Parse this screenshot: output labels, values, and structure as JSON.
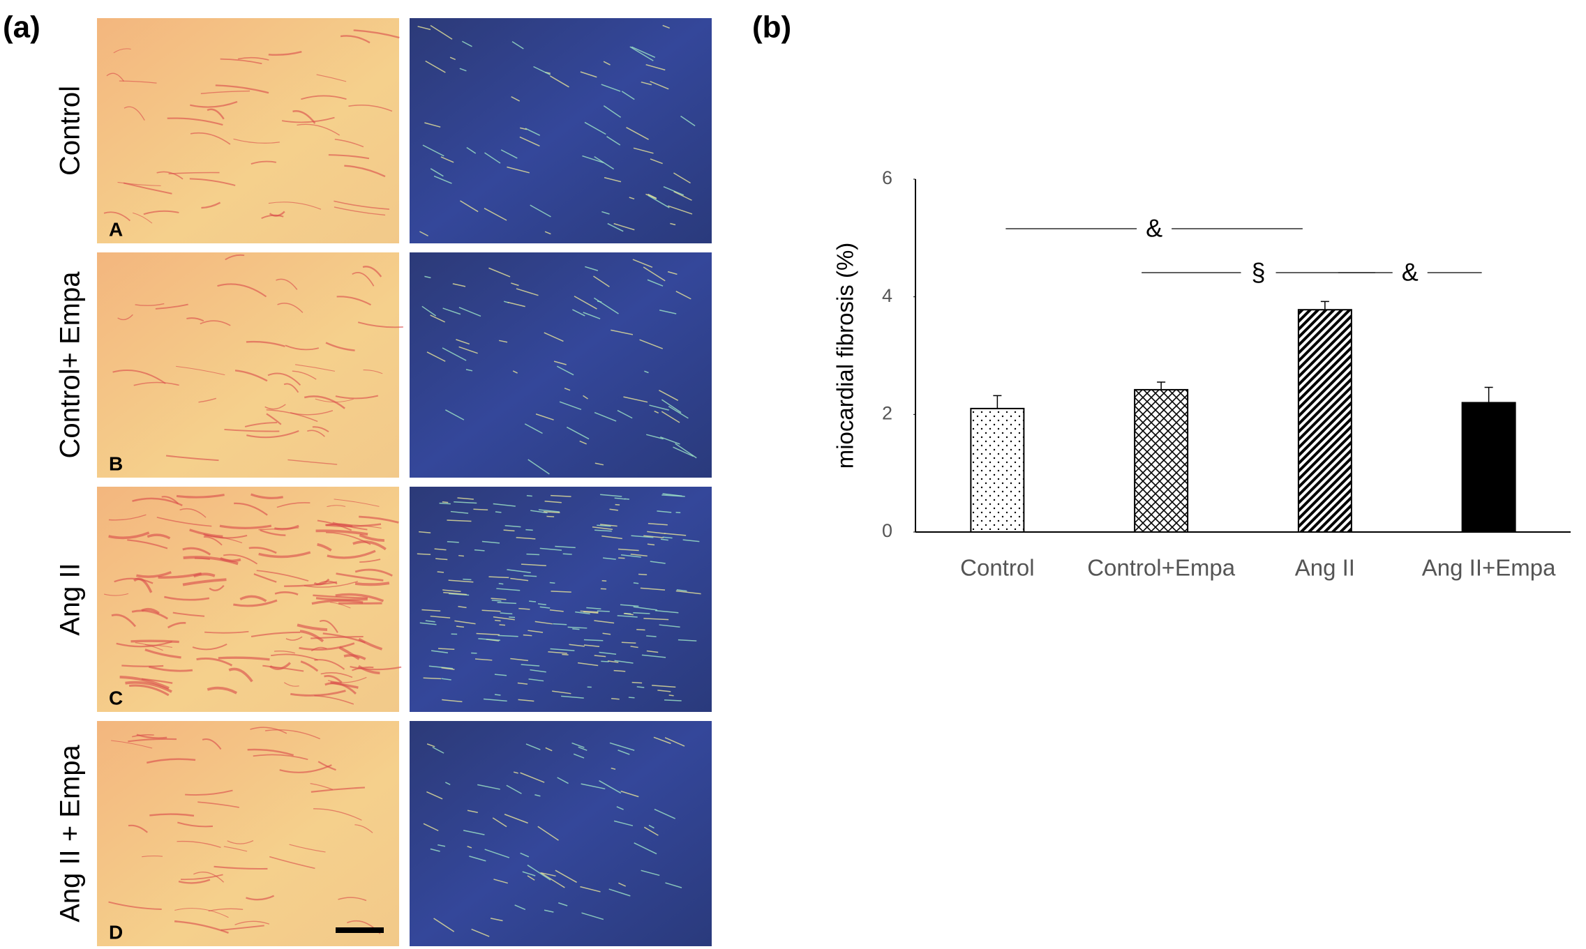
{
  "panel_a": {
    "label": "(a)",
    "rows": [
      {
        "label": "Control",
        "letter": "A"
      },
      {
        "label": "Control+ Empa",
        "letter": "B"
      },
      {
        "label": "Ang II",
        "letter": "C"
      },
      {
        "label": "Ang II + Empa",
        "letter": "D"
      }
    ]
  },
  "chart_data": {
    "type": "bar",
    "panel_label": "(b)",
    "y_label": "miocardial fibrosis (%)",
    "categories": [
      "Control",
      "Control+Empa",
      "Ang II",
      "Ang II+Empa"
    ],
    "values": [
      2.1,
      2.42,
      3.78,
      2.2
    ],
    "errors": [
      0.22,
      0.13,
      0.14,
      0.26
    ],
    "patterns": [
      "dots",
      "crosshatch",
      "diagonal",
      "solid"
    ],
    "color": "#000000",
    "ylim": [
      0,
      6
    ],
    "yticks": [
      0,
      2,
      4,
      6
    ],
    "annotations": [
      {
        "text": "&",
        "from": 0,
        "to": 2
      },
      {
        "text": "§",
        "from": 1,
        "to": 2
      },
      {
        "text": "&",
        "from": 2,
        "to": 3
      }
    ]
  }
}
